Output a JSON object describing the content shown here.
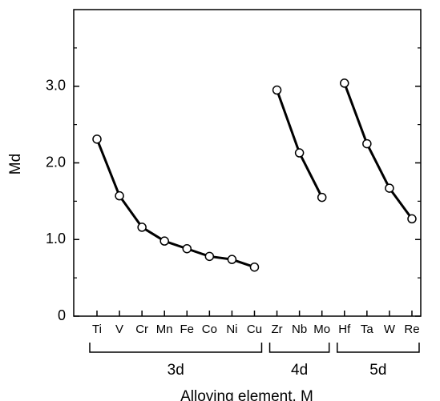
{
  "chart_data": {
    "type": "line",
    "x_label": "Alloying element, M",
    "y_label": "Md",
    "categories": [
      "Ti",
      "V",
      "Cr",
      "Mn",
      "Fe",
      "Co",
      "Ni",
      "Cu",
      "Zr",
      "Nb",
      "Mo",
      "Hf",
      "Ta",
      "W",
      "Re"
    ],
    "series": [
      {
        "name": "3d",
        "color": "#000000",
        "values": [
          2.31,
          1.57,
          1.16,
          0.98,
          0.88,
          0.78,
          0.74,
          0.64,
          null,
          null,
          null,
          null,
          null,
          null,
          null
        ]
      },
      {
        "name": "4d",
        "color": "#000000",
        "values": [
          null,
          null,
          null,
          null,
          null,
          null,
          null,
          null,
          2.95,
          2.13,
          1.55,
          null,
          null,
          null,
          null
        ]
      },
      {
        "name": "5d",
        "color": "#000000",
        "values": [
          null,
          null,
          null,
          null,
          null,
          null,
          null,
          null,
          null,
          null,
          null,
          3.04,
          2.25,
          1.67,
          1.27
        ]
      }
    ],
    "ylim": [
      0,
      4
    ],
    "yticks": [
      0,
      {
        "value": 1,
        "label": "1.0"
      },
      {
        "value": 2,
        "label": "2.0"
      },
      {
        "value": 3,
        "label": "3.0"
      }
    ],
    "yminor": [
      0.5,
      1.5,
      2.5,
      3.5
    ],
    "grid": false
  }
}
